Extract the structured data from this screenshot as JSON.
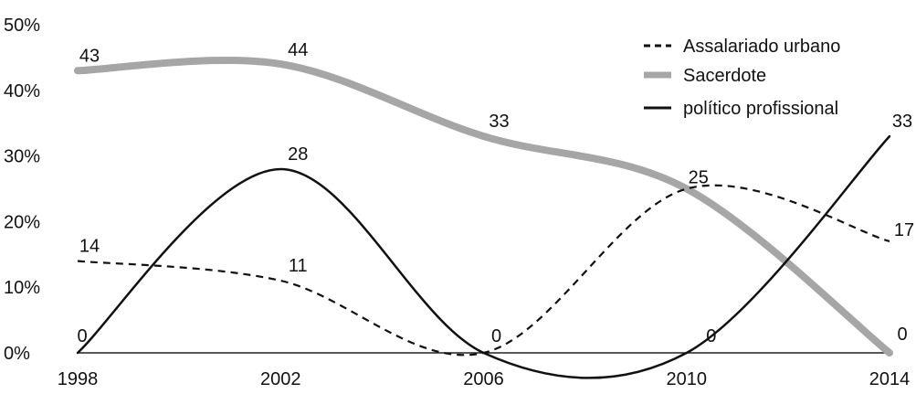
{
  "chart_data": {
    "type": "line",
    "title": "",
    "xlabel": "",
    "ylabel": "",
    "x": [
      1998,
      2002,
      2006,
      2010,
      2014
    ],
    "x_tick_labels": [
      "1998",
      "2002",
      "2006",
      "2010",
      "2014"
    ],
    "y_tick_labels": [
      "0%",
      "10%",
      "20%",
      "30%",
      "40%",
      "50%"
    ],
    "y_ticks": [
      0,
      10,
      20,
      30,
      40,
      50
    ],
    "ylim": [
      0,
      50
    ],
    "xlim": [
      1998,
      2014
    ],
    "grid": false,
    "legend_position": "top-right",
    "series": [
      {
        "key": "s1",
        "name": "Assalariado urbano",
        "values": [
          14,
          11,
          0,
          25,
          17
        ],
        "value_labels": [
          "14",
          "11",
          "0",
          "25",
          "17"
        ],
        "color": "#111111",
        "style": "dashed"
      },
      {
        "key": "s2",
        "name": "Sacerdote",
        "values": [
          43,
          44,
          33,
          25,
          0
        ],
        "value_labels": [
          "43",
          "44",
          "33",
          "25",
          "0"
        ],
        "color": "#a6a6a6",
        "style": "thick"
      },
      {
        "key": "s3",
        "name": "político profissional",
        "values": [
          0,
          28,
          0,
          0,
          33
        ],
        "value_labels": [
          "0",
          "28",
          "0",
          "0",
          "33"
        ],
        "color": "#111111",
        "style": "solid"
      }
    ]
  }
}
